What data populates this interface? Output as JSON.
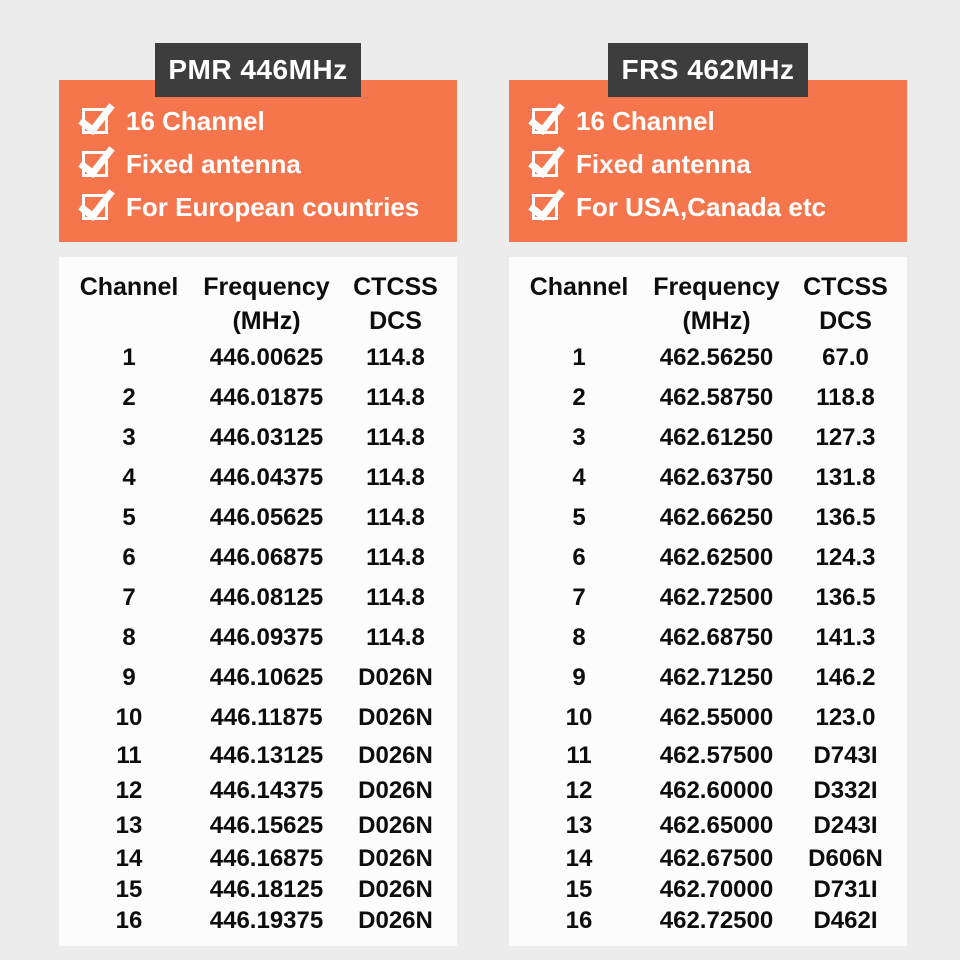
{
  "colors": {
    "page_background": "#ECECEC",
    "badge_background": "#3D3D3D",
    "feature_box_orange": "#F5764D",
    "panel_background": "#FCFCFC",
    "text_dark": "#0D0D0D",
    "text_white": "#FFFFFF"
  },
  "icons": {
    "feature_bullet": "checked-checkbox-icon"
  },
  "columns": [
    {
      "badge": "PMR 446MHz",
      "features": [
        "16 Channel",
        "Fixed antenna",
        "For European countries"
      ],
      "table": {
        "headers": {
          "channel": "Channel",
          "frequency": "Frequency",
          "frequency_sub": "(MHz)",
          "ctcss": "CTCSS",
          "ctcss_sub": "DCS"
        },
        "rows": [
          {
            "ch": "1",
            "freq": "446.00625",
            "code": "114.8"
          },
          {
            "ch": "2",
            "freq": "446.01875",
            "code": "114.8"
          },
          {
            "ch": "3",
            "freq": "446.03125",
            "code": "114.8"
          },
          {
            "ch": "4",
            "freq": "446.04375",
            "code": "114.8"
          },
          {
            "ch": "5",
            "freq": "446.05625",
            "code": "114.8"
          },
          {
            "ch": "6",
            "freq": "446.06875",
            "code": "114.8"
          },
          {
            "ch": "7",
            "freq": "446.08125",
            "code": "114.8"
          },
          {
            "ch": "8",
            "freq": "446.09375",
            "code": "114.8"
          },
          {
            "ch": "9",
            "freq": "446.10625",
            "code": "D026N"
          },
          {
            "ch": "10",
            "freq": "446.11875",
            "code": "D026N"
          },
          {
            "ch": "11",
            "freq": "446.13125",
            "code": "D026N"
          },
          {
            "ch": "12",
            "freq": "446.14375",
            "code": "D026N"
          },
          {
            "ch": "13",
            "freq": "446.15625",
            "code": "D026N"
          },
          {
            "ch": "14",
            "freq": "446.16875",
            "code": "D026N"
          },
          {
            "ch": "15",
            "freq": "446.18125",
            "code": "D026N"
          },
          {
            "ch": "16",
            "freq": "446.19375",
            "code": "D026N"
          }
        ]
      }
    },
    {
      "badge": "FRS 462MHz",
      "features": [
        "16 Channel",
        "Fixed antenna",
        "For USA,Canada etc"
      ],
      "table": {
        "headers": {
          "channel": "Channel",
          "frequency": "Frequency",
          "frequency_sub": "(MHz)",
          "ctcss": "CTCSS",
          "ctcss_sub": "DCS"
        },
        "rows": [
          {
            "ch": "1",
            "freq": "462.56250",
            "code": "67.0"
          },
          {
            "ch": "2",
            "freq": "462.58750",
            "code": "118.8"
          },
          {
            "ch": "3",
            "freq": "462.61250",
            "code": "127.3"
          },
          {
            "ch": "4",
            "freq": "462.63750",
            "code": "131.8"
          },
          {
            "ch": "5",
            "freq": "462.66250",
            "code": "136.5"
          },
          {
            "ch": "6",
            "freq": "462.62500",
            "code": "124.3"
          },
          {
            "ch": "7",
            "freq": "462.72500",
            "code": "136.5"
          },
          {
            "ch": "8",
            "freq": "462.68750",
            "code": "141.3"
          },
          {
            "ch": "9",
            "freq": "462.71250",
            "code": "146.2"
          },
          {
            "ch": "10",
            "freq": "462.55000",
            "code": "123.0"
          },
          {
            "ch": "11",
            "freq": "462.57500",
            "code": "D743I"
          },
          {
            "ch": "12",
            "freq": "462.60000",
            "code": "D332I"
          },
          {
            "ch": "13",
            "freq": "462.65000",
            "code": "D243I"
          },
          {
            "ch": "14",
            "freq": "462.67500",
            "code": "D606N"
          },
          {
            "ch": "15",
            "freq": "462.70000",
            "code": "D731I"
          },
          {
            "ch": "16",
            "freq": "462.72500",
            "code": "D462I"
          }
        ]
      }
    }
  ]
}
